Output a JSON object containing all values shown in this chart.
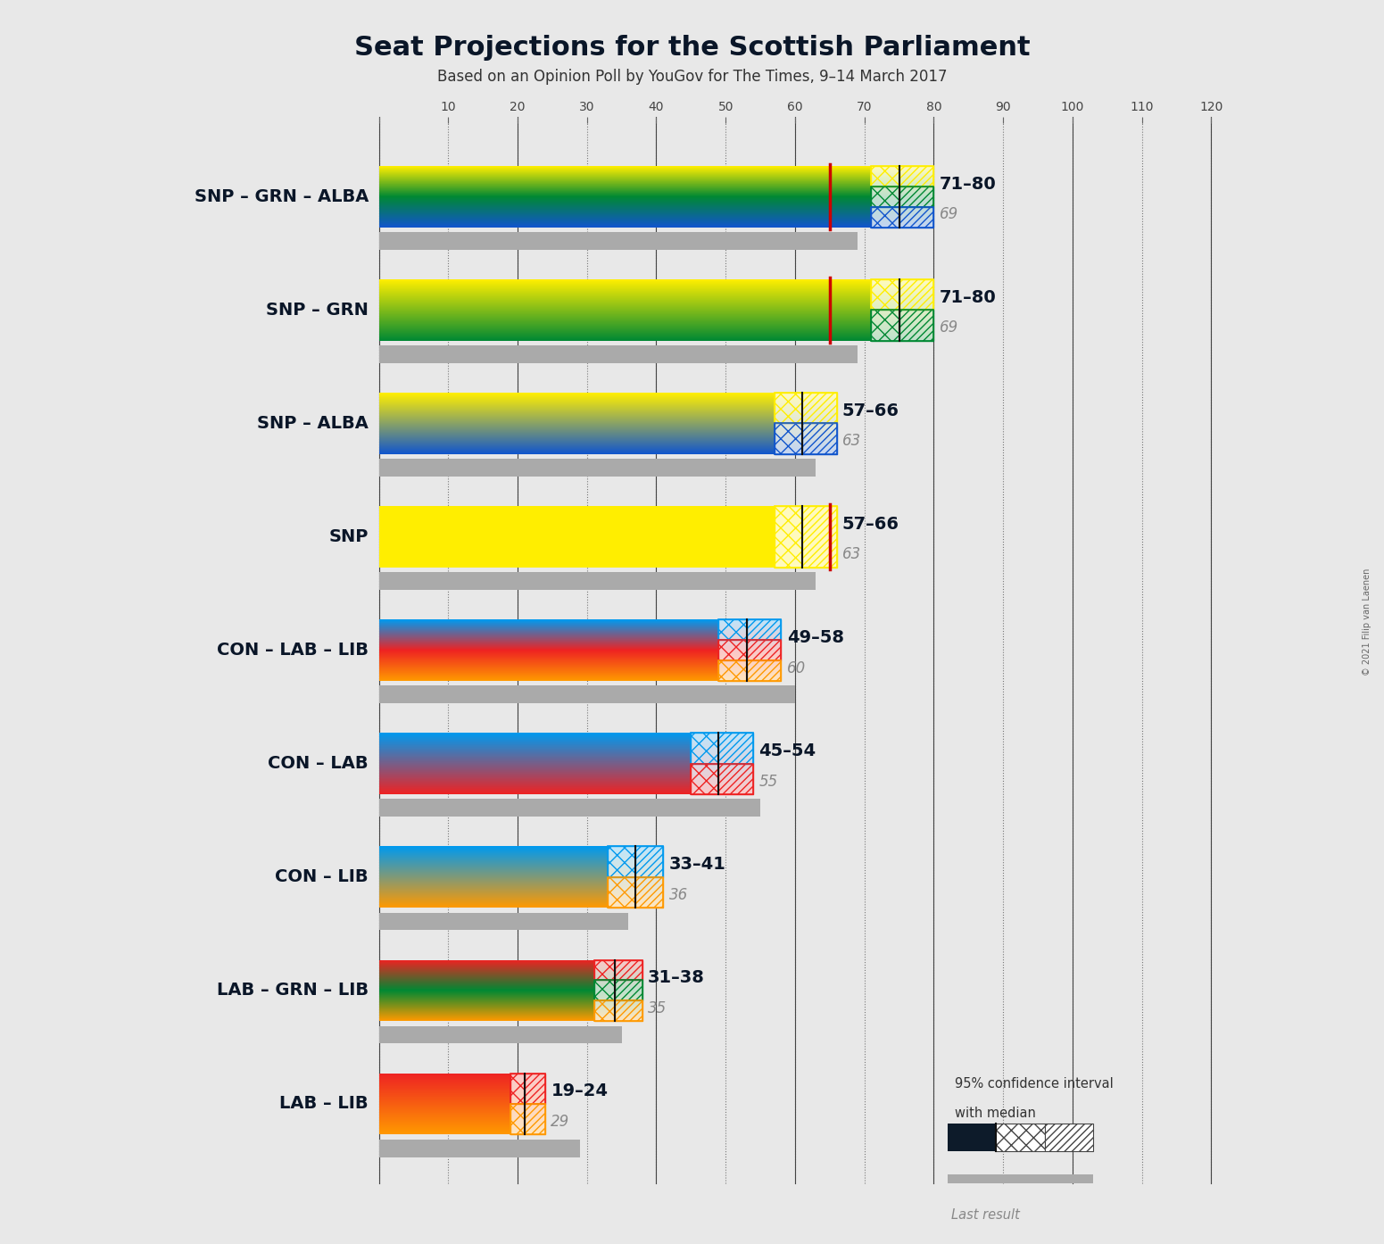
{
  "title": "Seat Projections for the Scottish Parliament",
  "subtitle": "Based on an Opinion Poll by YouGov for The Times, 9–14 March 2017",
  "copyright": "© 2021 Filip van Laenen",
  "background_color": "#e8e8e8",
  "max_seats": 129,
  "coalitions": [
    {
      "label": "SNP – GRN – ALBA",
      "parties": [
        "SNP",
        "GRN",
        "ALBA"
      ],
      "colors": [
        "#FFEE00",
        "#008833",
        "#1155CC"
      ],
      "bar_min": 71,
      "bar_max": 80,
      "median": 75,
      "last_result": 69,
      "red_line": true,
      "underline": false
    },
    {
      "label": "SNP – GRN",
      "parties": [
        "SNP",
        "GRN"
      ],
      "colors": [
        "#FFEE00",
        "#008833"
      ],
      "bar_min": 71,
      "bar_max": 80,
      "median": 75,
      "last_result": 69,
      "red_line": true,
      "underline": false
    },
    {
      "label": "SNP – ALBA",
      "parties": [
        "SNP",
        "ALBA"
      ],
      "colors": [
        "#FFEE00",
        "#1155CC"
      ],
      "bar_min": 57,
      "bar_max": 66,
      "median": 61,
      "last_result": 63,
      "red_line": false,
      "underline": false
    },
    {
      "label": "SNP",
      "parties": [
        "SNP"
      ],
      "colors": [
        "#FFEE00"
      ],
      "bar_min": 57,
      "bar_max": 66,
      "median": 61,
      "last_result": 63,
      "red_line": true,
      "underline": true
    },
    {
      "label": "CON – LAB – LIB",
      "parties": [
        "CON",
        "LAB",
        "LIB"
      ],
      "colors": [
        "#0099EE",
        "#EE2222",
        "#FF9900"
      ],
      "bar_min": 49,
      "bar_max": 58,
      "median": 53,
      "last_result": 60,
      "red_line": false,
      "underline": false
    },
    {
      "label": "CON – LAB",
      "parties": [
        "CON",
        "LAB"
      ],
      "colors": [
        "#0099EE",
        "#EE2222"
      ],
      "bar_min": 45,
      "bar_max": 54,
      "median": 49,
      "last_result": 55,
      "red_line": false,
      "underline": false
    },
    {
      "label": "CON – LIB",
      "parties": [
        "CON",
        "LIB"
      ],
      "colors": [
        "#0099EE",
        "#FF9900"
      ],
      "bar_min": 33,
      "bar_max": 41,
      "median": 37,
      "last_result": 36,
      "red_line": false,
      "underline": false
    },
    {
      "label": "LAB – GRN – LIB",
      "parties": [
        "LAB",
        "GRN",
        "LIB"
      ],
      "colors": [
        "#EE2222",
        "#008833",
        "#FF9900"
      ],
      "bar_min": 31,
      "bar_max": 38,
      "median": 34,
      "last_result": 35,
      "red_line": false,
      "underline": false
    },
    {
      "label": "LAB – LIB",
      "parties": [
        "LAB",
        "LIB"
      ],
      "colors": [
        "#EE2222",
        "#FF9900"
      ],
      "bar_min": 19,
      "bar_max": 24,
      "median": 21,
      "last_result": 29,
      "red_line": false,
      "underline": false
    }
  ],
  "hatch_colors": {
    "SNP": "#FFEE00",
    "GRN": "#008833",
    "ALBA": "#1155CC",
    "CON": "#0099EE",
    "LAB": "#EE2222",
    "LIB": "#FF9900"
  },
  "tick_interval": 10,
  "x_max_display": 120
}
